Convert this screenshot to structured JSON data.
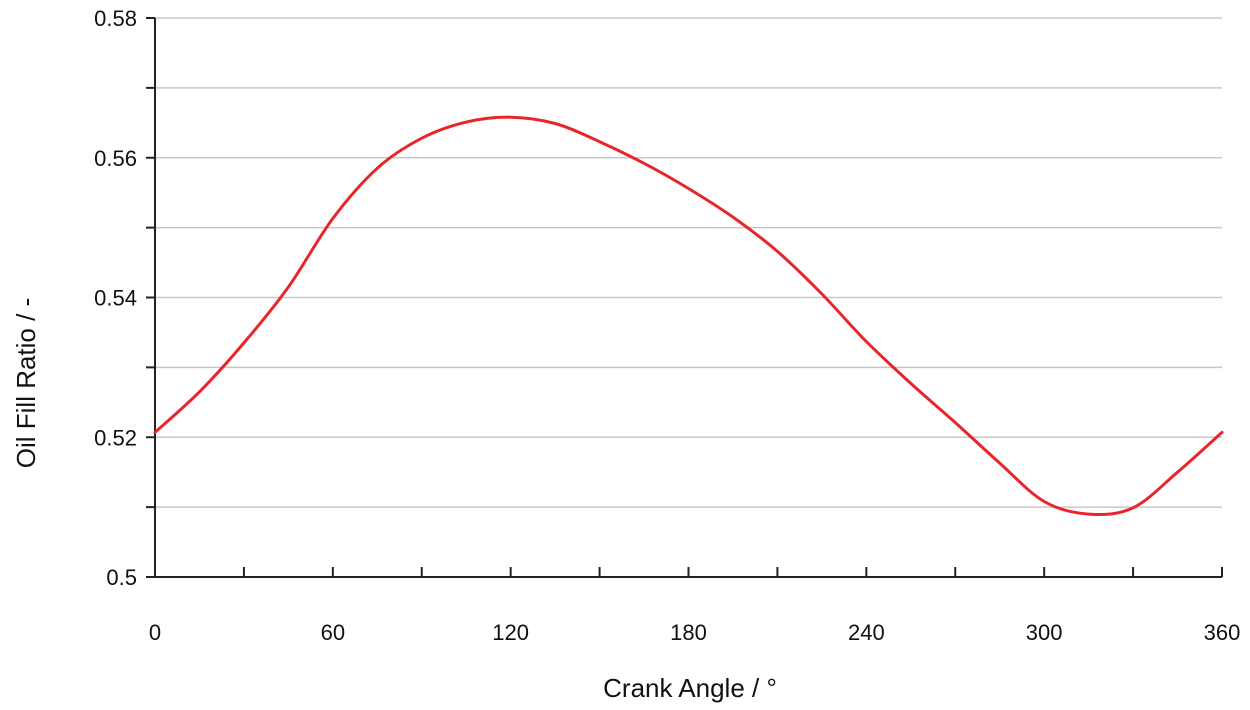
{
  "chart_data": {
    "type": "line",
    "xlabel": "Crank   Angle   /   °",
    "ylabel": "Oil   Fill   Ratio   /   -",
    "xlim": [
      0,
      360
    ],
    "ylim": [
      0.5,
      0.58
    ],
    "x_ticks": [
      0,
      60,
      120,
      180,
      240,
      300,
      360
    ],
    "x_tick_labels": [
      "0",
      "60",
      "120",
      "180",
      "240",
      "300",
      "360"
    ],
    "x_minor_step": 30,
    "y_ticks": [
      0.5,
      0.52,
      0.54,
      0.56,
      0.58
    ],
    "y_tick_labels": [
      "0.5",
      "0.52",
      "0.54",
      "0.56",
      "0.58"
    ],
    "y_minor_step": 0.01,
    "grid": "horizontal",
    "line_color": "#e8262a",
    "grid_color": "#c8c8c8",
    "x": [
      0,
      15,
      30,
      45,
      60,
      75,
      90,
      105,
      120,
      135,
      150,
      165,
      180,
      195,
      210,
      225,
      240,
      255,
      270,
      285,
      300,
      315,
      330,
      345,
      360
    ],
    "y": [
      0.5207,
      0.5265,
      0.5335,
      0.5415,
      0.5513,
      0.5585,
      0.5628,
      0.5651,
      0.5658,
      0.5649,
      0.5623,
      0.5592,
      0.5556,
      0.5515,
      0.5466,
      0.5405,
      0.5337,
      0.5277,
      0.5221,
      0.5163,
      0.5108,
      0.509,
      0.5099,
      0.515,
      0.5207
    ]
  }
}
